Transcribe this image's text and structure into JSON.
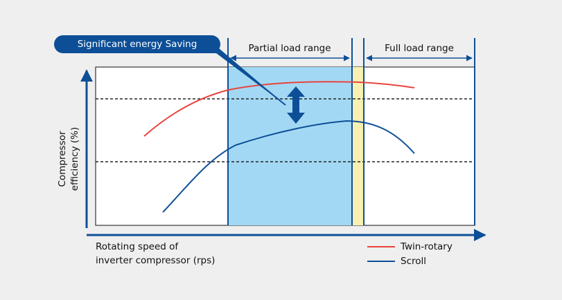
{
  "callout": "Significant energy Saving",
  "ranges": {
    "partial": "Partial load range",
    "full": "Full load range"
  },
  "y_axis_label": [
    "Compressor",
    "efficiency (%)"
  ],
  "x_axis_label": [
    "Rotating speed of",
    "inverter compressor (rps)"
  ],
  "legend": [
    {
      "name": "Twin-rotary",
      "color": "#e8433c"
    },
    {
      "name": "Scroll",
      "color": "#0d4f97"
    }
  ]
}
